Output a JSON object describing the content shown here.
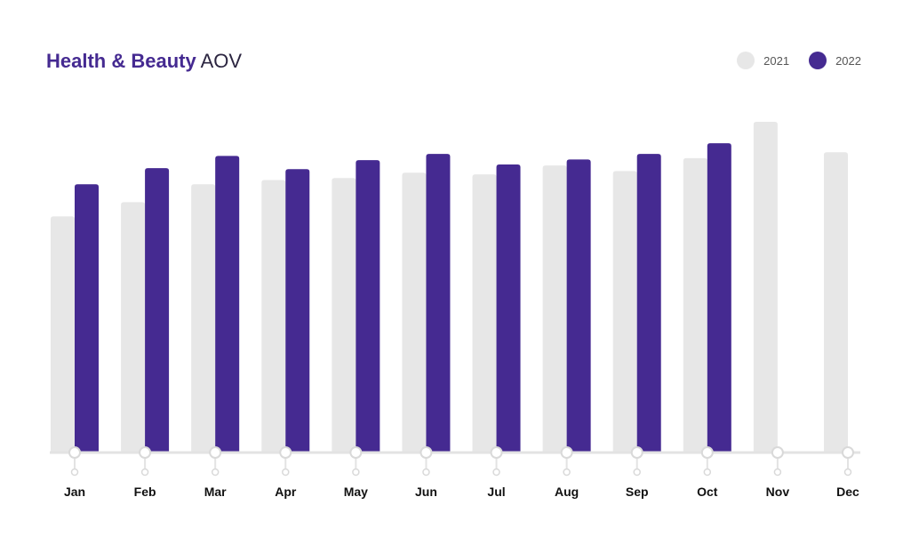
{
  "colors": {
    "series_2021": "#e7e7e7",
    "series_2022": "#452a91",
    "axis": "#e3e3e3",
    "title_accent": "#452a91",
    "label_text": "#111111"
  },
  "chart_data": {
    "type": "bar",
    "title_strong": "Health & Beauty",
    "title_light": "AOV",
    "xlabel": "",
    "ylabel": "",
    "grid": false,
    "legend_position": "top-right",
    "categories": [
      "Jan",
      "Feb",
      "Mar",
      "Apr",
      "May",
      "Jun",
      "Jul",
      "Aug",
      "Sep",
      "Oct",
      "Nov",
      "Dec"
    ],
    "ylim": [
      0,
      100
    ],
    "series": [
      {
        "name": "2021",
        "color": "#e7e7e7",
        "values": [
          71.4,
          75.7,
          81.1,
          82.4,
          83.0,
          84.6,
          84.1,
          86.8,
          85.1,
          89.0,
          100.0,
          90.8
        ]
      },
      {
        "name": "2022",
        "color": "#452a91",
        "values": [
          81.1,
          86.0,
          89.7,
          85.7,
          88.4,
          90.3,
          87.1,
          88.6,
          90.3,
          93.5,
          null,
          null
        ]
      }
    ]
  }
}
